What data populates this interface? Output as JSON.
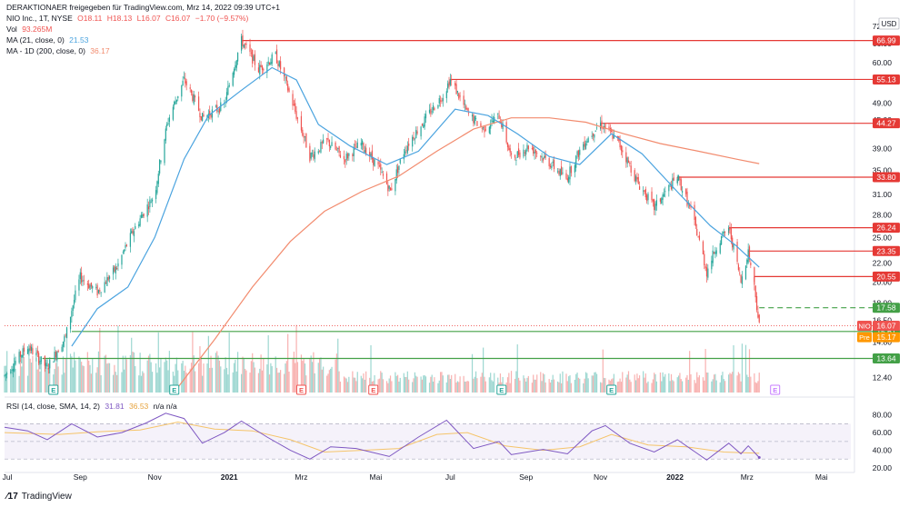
{
  "header": {
    "attribution": "DERAKTIONAER freigegeben für TradingView.com, Mrz 14, 2022 09:39 UTC+1",
    "symbol": "NIO Inc., 1T, NYSE",
    "o": "O18.11",
    "h": "H18.13",
    "l": "L16.07",
    "c": "C16.07",
    "chg": "−1.70 (−9.57%)",
    "vol_label": "Vol",
    "vol_value": "93.265M",
    "ma21_label": "MA (21, close, 0)",
    "ma21_value": "21.53",
    "ma200_label": "MA - 1D (200, close, 0)",
    "ma200_value": "36.17",
    "rsi_label": "RSI (14, close, SMA, 14, 2)",
    "rsi_value": "31.81",
    "rsi_sma": "36.53",
    "rsi_na": "n/a n/a"
  },
  "watermark": "TradingView",
  "colors": {
    "up": "#26a69a",
    "down": "#ef5350",
    "ma21": "#4aa3df",
    "ma200": "#f28b6e",
    "resistance": "#e53935",
    "support": "#43a047",
    "rsi": "#7e57c2",
    "rsi_sma": "#f5c46a",
    "price_tag": "#ef5350",
    "pre_tag": "#ff9800"
  },
  "chart_data": {
    "type": "line",
    "title": "NIO Inc., 1T, NYSE",
    "currency": "USD",
    "y_scale": "log",
    "ylim": [
      11.5,
      77
    ],
    "x_ticks": [
      "Jul",
      "Sep",
      "Nov",
      "2021",
      "Mrz",
      "Mai",
      "Jul",
      "Sep",
      "Nov",
      "2022",
      "Mrz",
      "Mai"
    ],
    "y_ticks": [
      12.4,
      14.8,
      16.5,
      18.0,
      20.0,
      22.0,
      25.0,
      28.0,
      31.0,
      35.0,
      39.0,
      45.0,
      49.0,
      55.0,
      60.0,
      66.0,
      72.0
    ],
    "price_path": [
      {
        "date": "2020-07-01",
        "close": 12.5
      },
      {
        "date": "2020-07-20",
        "close": 14.5
      },
      {
        "date": "2020-08-05",
        "close": 13.0
      },
      {
        "date": "2020-08-20",
        "close": 15.2
      },
      {
        "date": "2020-09-01",
        "close": 20.5
      },
      {
        "date": "2020-09-15",
        "close": 19.0
      },
      {
        "date": "2020-10-01",
        "close": 21.5
      },
      {
        "date": "2020-10-15",
        "close": 26.0
      },
      {
        "date": "2020-11-01",
        "close": 31.0
      },
      {
        "date": "2020-11-12",
        "close": 45.0
      },
      {
        "date": "2020-11-25",
        "close": 55.0
      },
      {
        "date": "2020-12-10",
        "close": 45.5
      },
      {
        "date": "2020-12-28",
        "close": 48.5
      },
      {
        "date": "2021-01-11",
        "close": 66.99
      },
      {
        "date": "2021-01-25",
        "close": 58.0
      },
      {
        "date": "2021-02-08",
        "close": 62.0
      },
      {
        "date": "2021-02-25",
        "close": 46.0
      },
      {
        "date": "2021-03-08",
        "close": 37.5
      },
      {
        "date": "2021-03-22",
        "close": 40.5
      },
      {
        "date": "2021-04-05",
        "close": 37.0
      },
      {
        "date": "2021-04-19",
        "close": 40.0
      },
      {
        "date": "2021-05-03",
        "close": 35.5
      },
      {
        "date": "2021-05-13",
        "close": 31.5
      },
      {
        "date": "2021-05-25",
        "close": 39.0
      },
      {
        "date": "2021-06-10",
        "close": 45.0
      },
      {
        "date": "2021-06-25",
        "close": 51.0
      },
      {
        "date": "2021-07-01",
        "close": 55.13
      },
      {
        "date": "2021-07-15",
        "close": 46.5
      },
      {
        "date": "2021-07-28",
        "close": 43.0
      },
      {
        "date": "2021-08-10",
        "close": 46.0
      },
      {
        "date": "2021-08-20",
        "close": 37.0
      },
      {
        "date": "2021-09-03",
        "close": 39.5
      },
      {
        "date": "2021-09-17",
        "close": 37.0
      },
      {
        "date": "2021-10-04",
        "close": 33.5
      },
      {
        "date": "2021-10-18",
        "close": 40.0
      },
      {
        "date": "2021-11-01",
        "close": 44.27
      },
      {
        "date": "2021-11-15",
        "close": 40.5
      },
      {
        "date": "2021-12-01",
        "close": 33.0
      },
      {
        "date": "2021-12-15",
        "close": 29.0
      },
      {
        "date": "2022-01-03",
        "close": 33.8
      },
      {
        "date": "2022-01-14",
        "close": 28.5
      },
      {
        "date": "2022-01-27",
        "close": 21.0
      },
      {
        "date": "2022-02-04",
        "close": 24.0
      },
      {
        "date": "2022-02-14",
        "close": 26.24
      },
      {
        "date": "2022-02-24",
        "close": 20.0
      },
      {
        "date": "2022-03-02",
        "close": 23.35
      },
      {
        "date": "2022-03-07",
        "close": 19.5
      },
      {
        "date": "2022-03-11",
        "close": 16.07
      }
    ],
    "ma21_path": [
      {
        "date": "2020-08-25",
        "value": 14.5
      },
      {
        "date": "2020-09-15",
        "value": 17.5
      },
      {
        "date": "2020-10-10",
        "value": 19.5
      },
      {
        "date": "2020-11-01",
        "value": 25.0
      },
      {
        "date": "2020-11-25",
        "value": 37.0
      },
      {
        "date": "2020-12-15",
        "value": 46.0
      },
      {
        "date": "2021-01-10",
        "value": 52.0
      },
      {
        "date": "2021-02-05",
        "value": 58.5
      },
      {
        "date": "2021-02-25",
        "value": 55.0
      },
      {
        "date": "2021-03-15",
        "value": 44.0
      },
      {
        "date": "2021-04-10",
        "value": 39.5
      },
      {
        "date": "2021-05-10",
        "value": 36.0
      },
      {
        "date": "2021-06-05",
        "value": 38.5
      },
      {
        "date": "2021-07-05",
        "value": 47.5
      },
      {
        "date": "2021-08-01",
        "value": 46.0
      },
      {
        "date": "2021-08-25",
        "value": 42.0
      },
      {
        "date": "2021-09-20",
        "value": 37.5
      },
      {
        "date": "2021-10-15",
        "value": 36.0
      },
      {
        "date": "2021-11-10",
        "value": 42.0
      },
      {
        "date": "2021-12-05",
        "value": 38.0
      },
      {
        "date": "2022-01-05",
        "value": 31.0
      },
      {
        "date": "2022-01-30",
        "value": 26.5
      },
      {
        "date": "2022-02-20",
        "value": 24.0
      },
      {
        "date": "2022-03-11",
        "value": 21.53
      }
    ],
    "ma200_path": [
      {
        "date": "2020-11-20",
        "value": 11.8
      },
      {
        "date": "2020-12-20",
        "value": 15.0
      },
      {
        "date": "2021-01-20",
        "value": 19.5
      },
      {
        "date": "2021-02-20",
        "value": 24.5
      },
      {
        "date": "2021-03-20",
        "value": 28.5
      },
      {
        "date": "2021-04-20",
        "value": 31.5
      },
      {
        "date": "2021-05-20",
        "value": 34.0
      },
      {
        "date": "2021-06-20",
        "value": 38.5
      },
      {
        "date": "2021-07-20",
        "value": 43.0
      },
      {
        "date": "2021-08-20",
        "value": 45.5
      },
      {
        "date": "2021-09-20",
        "value": 45.5
      },
      {
        "date": "2021-10-20",
        "value": 44.5
      },
      {
        "date": "2021-11-20",
        "value": 42.0
      },
      {
        "date": "2021-12-20",
        "value": 40.0
      },
      {
        "date": "2022-01-20",
        "value": 38.5
      },
      {
        "date": "2022-02-20",
        "value": 37.0
      },
      {
        "date": "2022-03-11",
        "value": 36.17
      }
    ],
    "resistance_levels": [
      {
        "value": 66.99,
        "label": "66.99",
        "start": "2021-01-11"
      },
      {
        "value": 55.13,
        "label": "55.13",
        "start": "2021-07-01"
      },
      {
        "value": 44.27,
        "label": "44.27",
        "start": "2021-11-01"
      },
      {
        "value": 33.8,
        "label": "33.80",
        "start": "2022-01-03"
      },
      {
        "value": 26.24,
        "label": "26.24",
        "start": "2022-02-14"
      },
      {
        "value": 23.35,
        "label": "23.35",
        "start": "2022-03-02"
      },
      {
        "value": 20.55,
        "label": "20.55",
        "start": "2022-03-07"
      }
    ],
    "support_levels": [
      {
        "value": 17.58,
        "label": "17.58",
        "style": "dashed",
        "start": "2022-03-11"
      },
      {
        "value": 15.61,
        "label": "15.61",
        "style": "solid",
        "start": "2020-08-25"
      },
      {
        "value": 13.64,
        "label": "13.64",
        "style": "solid",
        "start": "2020-08-01"
      }
    ],
    "last_price": {
      "symbol": "NIO",
      "value": 16.07,
      "label": "16.07"
    },
    "pre_market": {
      "label": "Pre",
      "value": 15.17,
      "value_label": "15.17"
    },
    "event_markers": [
      {
        "date": "2020-08-10",
        "letter": "E",
        "kind": "earnings-up"
      },
      {
        "date": "2020-11-17",
        "letter": "E",
        "kind": "earnings-up"
      },
      {
        "date": "2021-03-01",
        "letter": "E",
        "kind": "earnings-down"
      },
      {
        "date": "2021-04-29",
        "letter": "E",
        "kind": "earnings-down"
      },
      {
        "date": "2021-08-12",
        "letter": "E",
        "kind": "earnings-up"
      },
      {
        "date": "2021-11-10",
        "letter": "E",
        "kind": "earnings-up"
      },
      {
        "date": "2022-03-24",
        "letter": "E",
        "kind": "earnings-upcoming"
      }
    ],
    "rsi": {
      "ylim": [
        20,
        90
      ],
      "ticks": [
        20.0,
        40.0,
        60.0,
        80.0
      ],
      "levels": [
        30,
        50,
        70
      ],
      "path": [
        {
          "date": "2020-07-01",
          "value": 66
        },
        {
          "date": "2020-07-20",
          "value": 62
        },
        {
          "date": "2020-08-05",
          "value": 52
        },
        {
          "date": "2020-08-25",
          "value": 70
        },
        {
          "date": "2020-09-15",
          "value": 55
        },
        {
          "date": "2020-10-05",
          "value": 60
        },
        {
          "date": "2020-10-25",
          "value": 71
        },
        {
          "date": "2020-11-10",
          "value": 82
        },
        {
          "date": "2020-11-25",
          "value": 76
        },
        {
          "date": "2020-12-10",
          "value": 48
        },
        {
          "date": "2020-12-28",
          "value": 60
        },
        {
          "date": "2021-01-11",
          "value": 73
        },
        {
          "date": "2021-02-01",
          "value": 55
        },
        {
          "date": "2021-02-20",
          "value": 40
        },
        {
          "date": "2021-03-08",
          "value": 30
        },
        {
          "date": "2021-03-25",
          "value": 44
        },
        {
          "date": "2021-04-15",
          "value": 42
        },
        {
          "date": "2021-05-12",
          "value": 33
        },
        {
          "date": "2021-06-05",
          "value": 55
        },
        {
          "date": "2021-06-28",
          "value": 74
        },
        {
          "date": "2021-07-20",
          "value": 42
        },
        {
          "date": "2021-08-10",
          "value": 50
        },
        {
          "date": "2021-08-20",
          "value": 35
        },
        {
          "date": "2021-09-15",
          "value": 41
        },
        {
          "date": "2021-10-05",
          "value": 36
        },
        {
          "date": "2021-10-25",
          "value": 62
        },
        {
          "date": "2021-11-05",
          "value": 68
        },
        {
          "date": "2021-11-25",
          "value": 48
        },
        {
          "date": "2021-12-15",
          "value": 38
        },
        {
          "date": "2022-01-03",
          "value": 52
        },
        {
          "date": "2022-01-27",
          "value": 29
        },
        {
          "date": "2022-02-14",
          "value": 48
        },
        {
          "date": "2022-02-24",
          "value": 36
        },
        {
          "date": "2022-03-02",
          "value": 45
        },
        {
          "date": "2022-03-11",
          "value": 31.81
        }
      ],
      "sma_path": [
        {
          "date": "2020-07-01",
          "value": 60
        },
        {
          "date": "2020-08-15",
          "value": 58
        },
        {
          "date": "2020-09-15",
          "value": 61
        },
        {
          "date": "2020-10-20",
          "value": 63
        },
        {
          "date": "2020-11-20",
          "value": 72
        },
        {
          "date": "2020-12-20",
          "value": 64
        },
        {
          "date": "2021-01-20",
          "value": 62
        },
        {
          "date": "2021-02-20",
          "value": 52
        },
        {
          "date": "2021-03-20",
          "value": 38
        },
        {
          "date": "2021-04-20",
          "value": 40
        },
        {
          "date": "2021-05-20",
          "value": 42
        },
        {
          "date": "2021-06-20",
          "value": 58
        },
        {
          "date": "2021-07-15",
          "value": 60
        },
        {
          "date": "2021-08-15",
          "value": 45
        },
        {
          "date": "2021-09-15",
          "value": 40
        },
        {
          "date": "2021-10-15",
          "value": 44
        },
        {
          "date": "2021-11-10",
          "value": 58
        },
        {
          "date": "2021-12-10",
          "value": 46
        },
        {
          "date": "2022-01-10",
          "value": 44
        },
        {
          "date": "2022-02-10",
          "value": 38
        },
        {
          "date": "2022-03-11",
          "value": 36.53
        }
      ]
    }
  }
}
